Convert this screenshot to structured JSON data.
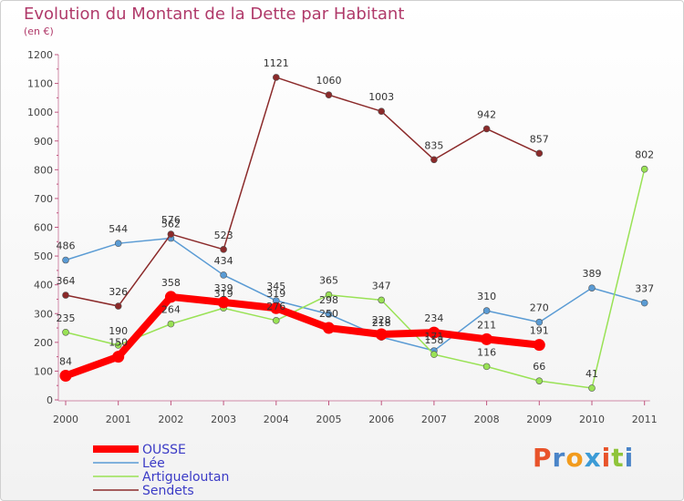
{
  "chart_data": {
    "type": "line",
    "title": "Evolution du Montant de la Dette par Habitant",
    "subtitle": "(en €)",
    "x": [
      "2000",
      "2001",
      "2002",
      "2003",
      "2004",
      "2005",
      "2006",
      "2007",
      "2008",
      "2009",
      "2010",
      "2011"
    ],
    "ylim": [
      0,
      1200
    ],
    "yticks": [
      0,
      100,
      200,
      300,
      400,
      500,
      600,
      700,
      800,
      900,
      1000,
      1100,
      1200
    ],
    "grid": false,
    "legend_position": "bottom-left",
    "series": [
      {
        "name": "OUSSE",
        "color": "#ff0000",
        "values": [
          84,
          150,
          358,
          339,
          319,
          250,
          228,
          234,
          211,
          191,
          null,
          null
        ]
      },
      {
        "name": "Lée",
        "color": "#5a9bd4",
        "values": [
          486,
          544,
          562,
          434,
          345,
          298,
          218,
          171,
          310,
          270,
          389,
          337
        ]
      },
      {
        "name": "Artigueloutan",
        "color": "#99e255",
        "values": [
          235,
          190,
          264,
          319,
          276,
          365,
          347,
          158,
          116,
          66,
          41,
          802
        ]
      },
      {
        "name": "Sendets",
        "color": "#8b2a2a",
        "values": [
          364,
          326,
          576,
          523,
          1121,
          1060,
          1003,
          835,
          942,
          857,
          null,
          null
        ]
      }
    ]
  },
  "logo": {
    "text": "Proxiti",
    "letters": [
      "P",
      "r",
      "o",
      "x",
      "i",
      "t",
      "i"
    ],
    "colors": [
      "#e8532a",
      "#4a84c8",
      "#f29b1d",
      "#3c9bd6",
      "#e8532a",
      "#8fc43a",
      "#4a84c8"
    ]
  }
}
